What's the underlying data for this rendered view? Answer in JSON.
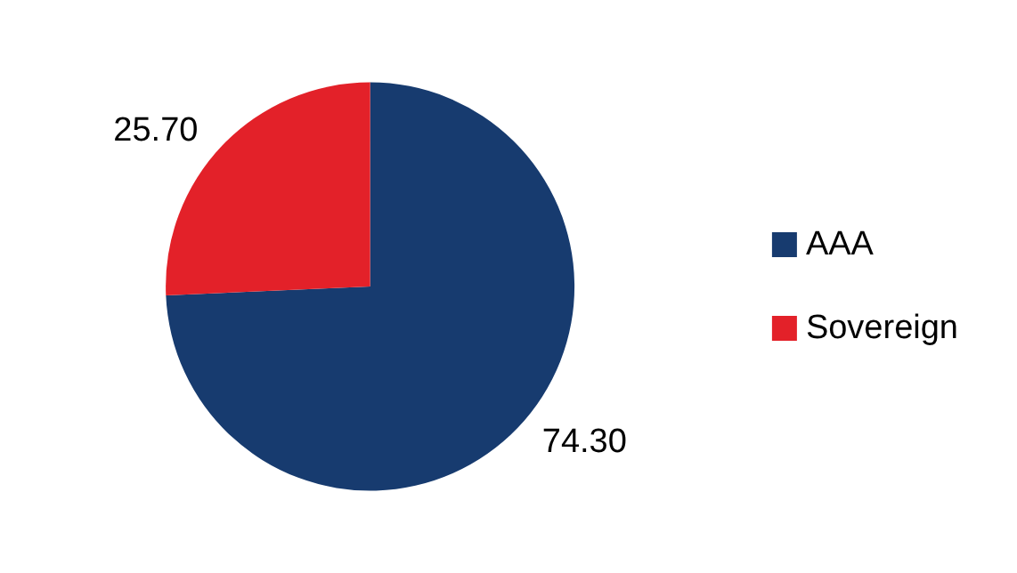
{
  "chart_data": {
    "type": "pie",
    "categories": [
      "AAA",
      "Sovereign"
    ],
    "values": [
      74.3,
      25.7
    ],
    "value_labels": [
      "74.30",
      "25.70"
    ],
    "colors": [
      "#173b6f",
      "#e32129"
    ],
    "legend": "right"
  }
}
